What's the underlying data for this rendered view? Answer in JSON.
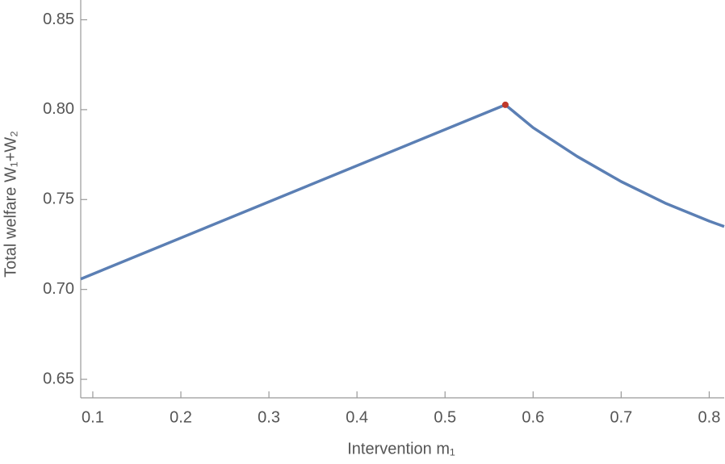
{
  "chart_data": {
    "type": "line",
    "x_label": "Intervention m₁",
    "y_label": "Total welfare W₁+W₂",
    "xlim": [
      0.0863,
      0.817
    ],
    "ylim": [
      0.6397,
      0.861
    ],
    "xticks": [
      0.1,
      0.2,
      0.3,
      0.4,
      0.5,
      0.6,
      0.7,
      0.8
    ],
    "yticks": [
      {
        "value": 0.65,
        "label": "0.65"
      },
      {
        "value": 0.7,
        "label": "0.70"
      },
      {
        "value": 0.75,
        "label": "0.75"
      },
      {
        "value": 0.8,
        "label": "0.80"
      },
      {
        "value": 0.85,
        "label": "0.85"
      }
    ],
    "series": [
      {
        "color": "#5b7fb4",
        "x": [
          0.0863,
          0.5685,
          0.6,
          0.65,
          0.7,
          0.75,
          0.8,
          0.817
        ],
        "values": [
          0.7058,
          0.8027,
          0.79,
          0.774,
          0.76,
          0.748,
          0.738,
          0.735
        ]
      },
      {
        "color": "#c0392b",
        "marker": true,
        "x": [
          0.5685
        ],
        "values": [
          0.8027
        ]
      }
    ]
  }
}
